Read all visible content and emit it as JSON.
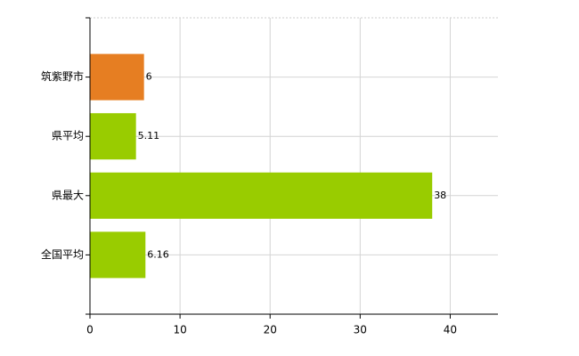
{
  "chart_data": {
    "type": "hbar",
    "categories": [
      "筑紫野市",
      "県平均",
      "県最大",
      "全国平均"
    ],
    "values": [
      6,
      5.11,
      38,
      6.16
    ],
    "colors": [
      "#e67e22",
      "#99cc00",
      "#99cc00",
      "#99cc00"
    ],
    "xlim": [
      0,
      45.3
    ],
    "xticks": [
      0,
      10,
      20,
      30,
      40
    ],
    "grid": true
  }
}
